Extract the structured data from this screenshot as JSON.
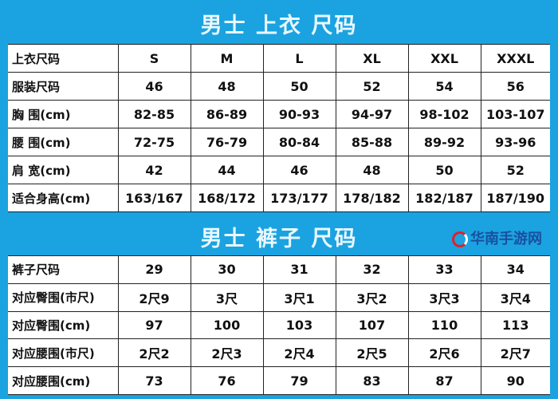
{
  "top": {
    "title": "男士 上衣 尺码",
    "rows": [
      {
        "label": "上衣尺码",
        "values": [
          "S",
          "M",
          "L",
          "XL",
          "XXL",
          "XXXL"
        ]
      },
      {
        "label": "服装尺码",
        "values": [
          "46",
          "48",
          "50",
          "52",
          "54",
          "56"
        ]
      },
      {
        "label": "胸 围(cm)",
        "values": [
          "82-85",
          "86-89",
          "90-93",
          "94-97",
          "98-102",
          "103-107"
        ]
      },
      {
        "label": "腰 围(cm)",
        "values": [
          "72-75",
          "76-79",
          "80-84",
          "85-88",
          "89-92",
          "93-96"
        ]
      },
      {
        "label": "肩 宽(cm)",
        "values": [
          "42",
          "44",
          "46",
          "48",
          "50",
          "52"
        ]
      },
      {
        "label": "适合身高(cm)",
        "values": [
          "163/167",
          "168/172",
          "173/177",
          "178/182",
          "182/187",
          "187/190"
        ]
      }
    ]
  },
  "bottom": {
    "title": "男士 裤子 尺码",
    "rows": [
      {
        "label": "裤子尺码",
        "values": [
          "29",
          "30",
          "31",
          "32",
          "33",
          "34"
        ]
      },
      {
        "label": "对应臀围(市尺)",
        "values": [
          "2尺9",
          "3尺",
          "3尺1",
          "3尺2",
          "3尺3",
          "3尺4"
        ]
      },
      {
        "label": "对应臀围(cm)",
        "values": [
          "97",
          "100",
          "103",
          "107",
          "110",
          "113"
        ]
      },
      {
        "label": "对应腰围(市尺)",
        "values": [
          "2尺2",
          "2尺3",
          "2尺4",
          "2尺5",
          "2尺6",
          "2尺7"
        ]
      },
      {
        "label": "对应腰围(cm)",
        "values": [
          "73",
          "76",
          "79",
          "83",
          "87",
          "90"
        ]
      }
    ]
  },
  "watermark": {
    "text": "华南手游网"
  },
  "colors": {
    "frame": "#1aa3e0",
    "title_text": "#eaf8ff"
  }
}
